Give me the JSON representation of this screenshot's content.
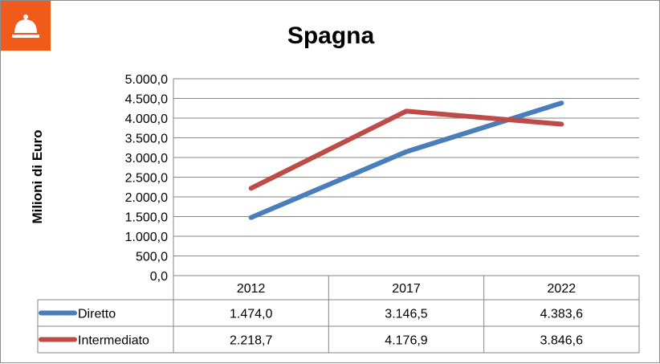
{
  "badge": {
    "icon": "service-bell-icon",
    "color": "#f05a1a"
  },
  "chart_data": {
    "type": "line",
    "title": "Spagna",
    "ylabel": "Milioni di Euro",
    "xlabel": "",
    "categories": [
      "2012",
      "2017",
      "2022"
    ],
    "series": [
      {
        "name": "Diretto",
        "color": "#4a7ebb",
        "values": [
          1474.0,
          3146.5,
          4383.6
        ],
        "labels": [
          "1.474,0",
          "3.146,5",
          "4.383,6"
        ]
      },
      {
        "name": "Intermediato",
        "color": "#be4b48",
        "values": [
          2218.7,
          4176.9,
          3846.6
        ],
        "labels": [
          "2.218,7",
          "4.176,9",
          "3.846,6"
        ]
      }
    ],
    "ylim": [
      0,
      5000
    ],
    "yticks": [
      0,
      500,
      1000,
      1500,
      2000,
      2500,
      3000,
      3500,
      4000,
      4500,
      5000
    ],
    "ytick_labels": [
      "0,0",
      "500,0",
      "1.000,0",
      "1.500,0",
      "2.000,0",
      "2.500,0",
      "3.000,0",
      "3.500,0",
      "4.000,0",
      "4.500,0",
      "5.000,0"
    ],
    "grid": true,
    "legend": "data-table"
  }
}
